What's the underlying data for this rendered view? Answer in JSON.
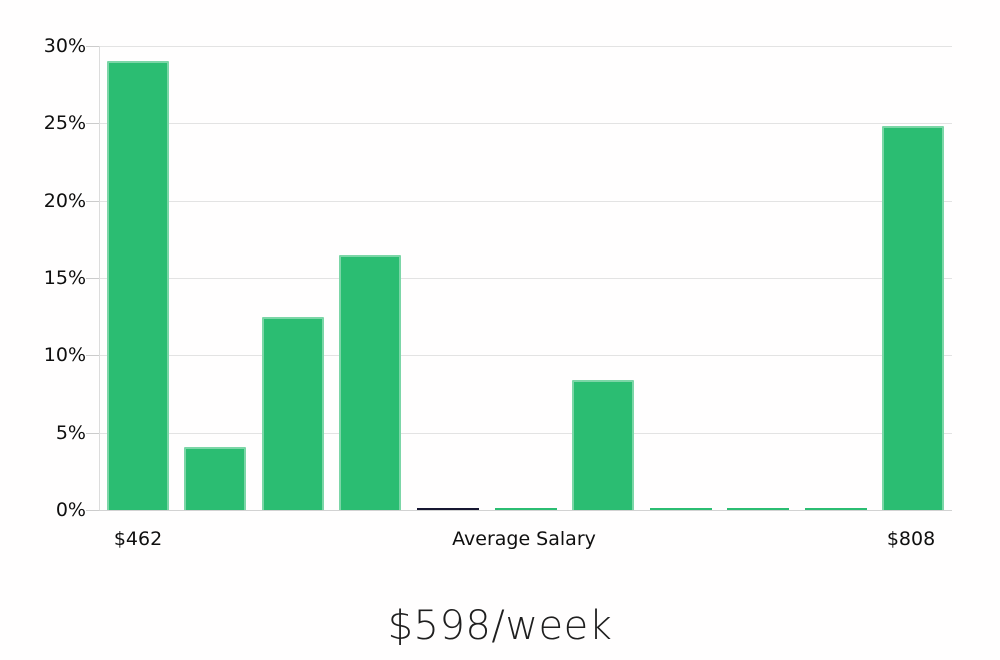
{
  "chart_data": {
    "type": "bar",
    "title": "$598/week",
    "categories": [
      "$462",
      "",
      "",
      "",
      "",
      "",
      "",
      "",
      "",
      "",
      "$808"
    ],
    "values": [
      29.0,
      4.1,
      12.5,
      16.5,
      0.12,
      0.12,
      8.4,
      0.12,
      0.12,
      0.12,
      24.8
    ],
    "ylim": [
      0,
      30
    ],
    "y_tick_labels": [
      "0%",
      "5%",
      "10%",
      "15%",
      "20%",
      "25%",
      "30%"
    ],
    "xlabels": {
      "left": "$462",
      "center": "Average Salary",
      "right": "$808"
    },
    "bar_color": "#2BBD72",
    "highlight_bar_index": 4,
    "highlight_bar_color": "#171731",
    "grid": true,
    "legend_position": "none",
    "ylabel": "",
    "xlabel": ""
  }
}
